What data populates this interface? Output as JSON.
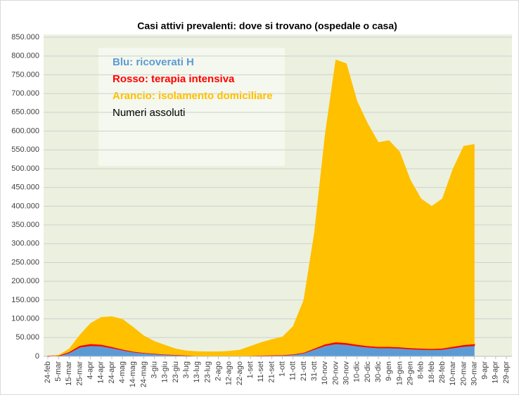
{
  "chart_data": {
    "type": "stacked_area",
    "title": "Casi attivi prevalenti: dove si trovano (ospedale o casa)",
    "annotation": "Numeri assoluti",
    "categories": [
      "24-feb",
      "5-mar",
      "15-mar",
      "25-mar",
      "4-apr",
      "14-apr",
      "24-apr",
      "4-mag",
      "14-mag",
      "24-mag",
      "3-giu",
      "13-giu",
      "23-giu",
      "3-lug",
      "13-lug",
      "23-lug",
      "2-ago",
      "12-ago",
      "22-ago",
      "1-set",
      "11-set",
      "21-set",
      "1-ott",
      "11-ott",
      "21-ott",
      "31-ott",
      "10-nov",
      "20-nov",
      "30-nov",
      "10-dic",
      "20-dic",
      "30-dic",
      "9-gen",
      "19-gen",
      "29-gen",
      "8-feb",
      "18-feb",
      "28-feb",
      "10-mar",
      "20-mar",
      "30-mar",
      "9-apr",
      "19-apr",
      "29-apr"
    ],
    "series": [
      {
        "name": "Blu: ricoverati H",
        "color": "#5b9bd5",
        "values": [
          100,
          1500,
          10000,
          25000,
          29000,
          28000,
          23000,
          17000,
          12000,
          9000,
          7000,
          5000,
          4000,
          2500,
          1200,
          800,
          800,
          900,
          1200,
          1500,
          2200,
          2700,
          3200,
          5000,
          9000,
          19000,
          29000,
          34000,
          32000,
          28000,
          25000,
          23000,
          23000,
          22000,
          20000,
          19000,
          18000,
          19000,
          23000,
          27000,
          29000,
          null,
          null,
          null
        ]
      },
      {
        "name": "Rosso: terapia intensiva",
        "color": "#ff0000",
        "values": [
          30,
          500,
          1700,
          3400,
          4000,
          3300,
          2300,
          1500,
          900,
          600,
          400,
          250,
          150,
          100,
          70,
          50,
          40,
          60,
          70,
          130,
          180,
          250,
          300,
          500,
          900,
          2000,
          3200,
          3800,
          3700,
          3200,
          2600,
          2500,
          2600,
          2400,
          2200,
          2100,
          2000,
          2300,
          2800,
          3500,
          3700,
          null,
          null,
          null
        ]
      },
      {
        "name": "Arancio: isolamento domiciliare",
        "color": "#ffc000",
        "values": [
          170,
          1000,
          8300,
          28600,
          55000,
          72700,
          80700,
          80500,
          65100,
          45400,
          32600,
          24750,
          15850,
          12400,
          11730,
          11650,
          11660,
          13040,
          15730,
          25370,
          34620,
          42050,
          48500,
          74500,
          140100,
          309000,
          557800,
          752200,
          744300,
          648800,
          592400,
          544500,
          549400,
          520600,
          447800,
          398900,
          380000,
          398700,
          474200,
          529500,
          532300,
          null,
          null,
          null
        ]
      }
    ],
    "ylim": [
      0,
      850000
    ],
    "yticks": [
      0,
      {
        "value": 50000,
        "label": "50.000"
      },
      {
        "value": 100000,
        "label": "100.000"
      },
      {
        "value": 150000,
        "label": "150.000"
      },
      {
        "value": 200000,
        "label": "200.000"
      },
      {
        "value": 250000,
        "label": "250.000"
      },
      {
        "value": 300000,
        "label": "300.000"
      },
      {
        "value": 350000,
        "label": "350.000"
      },
      {
        "value": 400000,
        "label": "400.000"
      },
      {
        "value": 450000,
        "label": "450.000"
      },
      {
        "value": 500000,
        "label": "500.000"
      },
      {
        "value": 550000,
        "label": "550.000"
      },
      {
        "value": 600000,
        "label": "600.000"
      },
      {
        "value": 650000,
        "label": "650.000"
      },
      {
        "value": 700000,
        "label": "700.000"
      },
      {
        "value": 750000,
        "label": "750.000"
      },
      {
        "value": 800000,
        "label": "800.000"
      },
      {
        "value": 850000,
        "label": "850.000"
      }
    ],
    "grid": true,
    "plot_background": "#ebf1de"
  }
}
